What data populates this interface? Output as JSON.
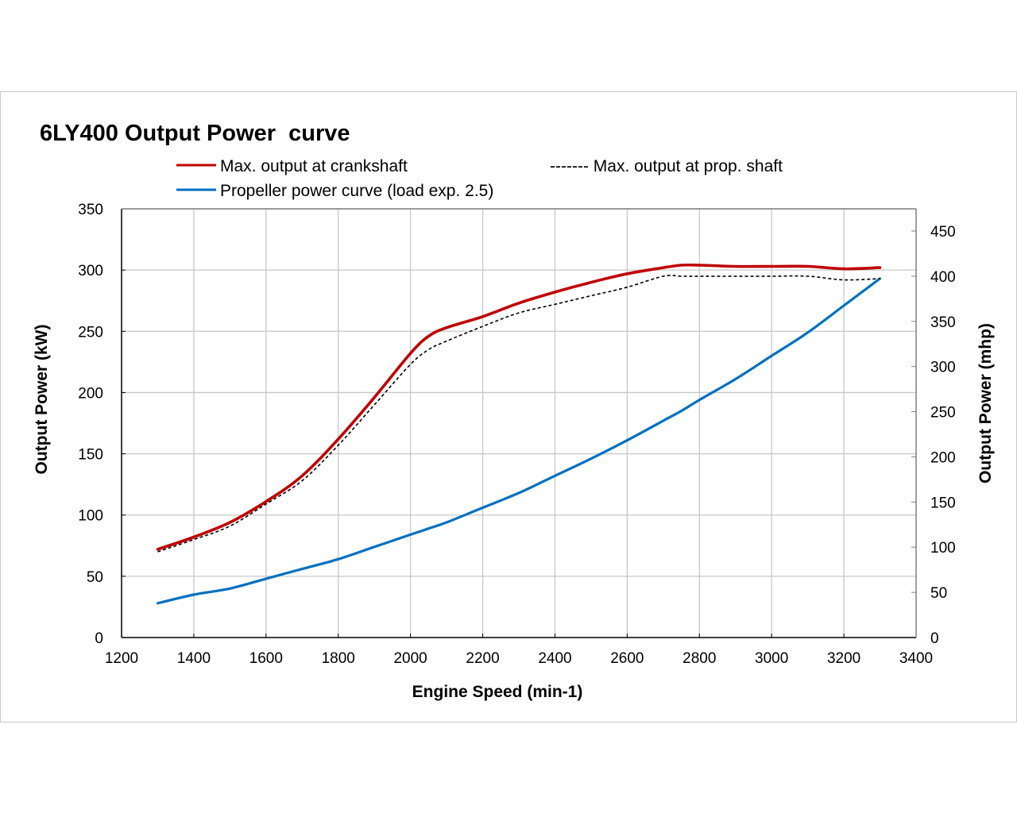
{
  "chart_data": {
    "type": "line",
    "title": "6LY400 Output Power  curve",
    "xlabel": "Engine Speed (min-1)",
    "ylabel": "Output Power (kW)",
    "y2label": "Output Power (mhp)",
    "xlim": [
      1200,
      3400
    ],
    "ylim": [
      0,
      350
    ],
    "y2lim": [
      0,
      475
    ],
    "xticks": [
      "1200",
      "1400",
      "1600",
      "1800",
      "2000",
      "2200",
      "2400",
      "2600",
      "2800",
      "3000",
      "3200",
      "3400"
    ],
    "yticks": [
      "0",
      "50",
      "100",
      "150",
      "200",
      "250",
      "300",
      "350"
    ],
    "y2ticks": [
      "0",
      "50",
      "100",
      "150",
      "200",
      "250",
      "300",
      "350",
      "400",
      "450"
    ],
    "grid": true,
    "legend_position": "top",
    "x": [
      1300,
      1400,
      1500,
      1600,
      1700,
      1800,
      1900,
      2000,
      2050,
      2100,
      2200,
      2300,
      2400,
      2500,
      2600,
      2700,
      2750,
      2800,
      2900,
      3000,
      3100,
      3200,
      3300
    ],
    "series": [
      {
        "name": "Max. output at crankshaft",
        "legend_label": "Max. output at crankshaft",
        "color": "#c00000",
        "style": "solid",
        "values": [
          72,
          82,
          94,
          111,
          132,
          162,
          196,
          232,
          246,
          253,
          262,
          273,
          282,
          290,
          297,
          302,
          304,
          304,
          303,
          303,
          303,
          301,
          302
        ]
      },
      {
        "name": "Max. output at prop. shaft",
        "legend_label": "------- Max. output at prop. shaft",
        "color": "#000000",
        "style": "dashed",
        "values": [
          70,
          80,
          91,
          109,
          128,
          157,
          190,
          223,
          235,
          242,
          254,
          265,
          272,
          279,
          286,
          295,
          295,
          295,
          295,
          295,
          295,
          292,
          293
        ]
      },
      {
        "name": "Propeller power curve (load exp. 2.5)",
        "legend_label": "Propeller power curve (load exp. 2.5)",
        "color": "#0070c0",
        "style": "solid",
        "values": [
          28,
          35,
          40,
          48,
          56,
          64,
          74,
          84,
          89,
          94,
          106,
          118,
          132,
          146,
          161,
          177,
          185,
          194,
          211,
          230,
          249,
          271,
          293
        ]
      }
    ]
  }
}
